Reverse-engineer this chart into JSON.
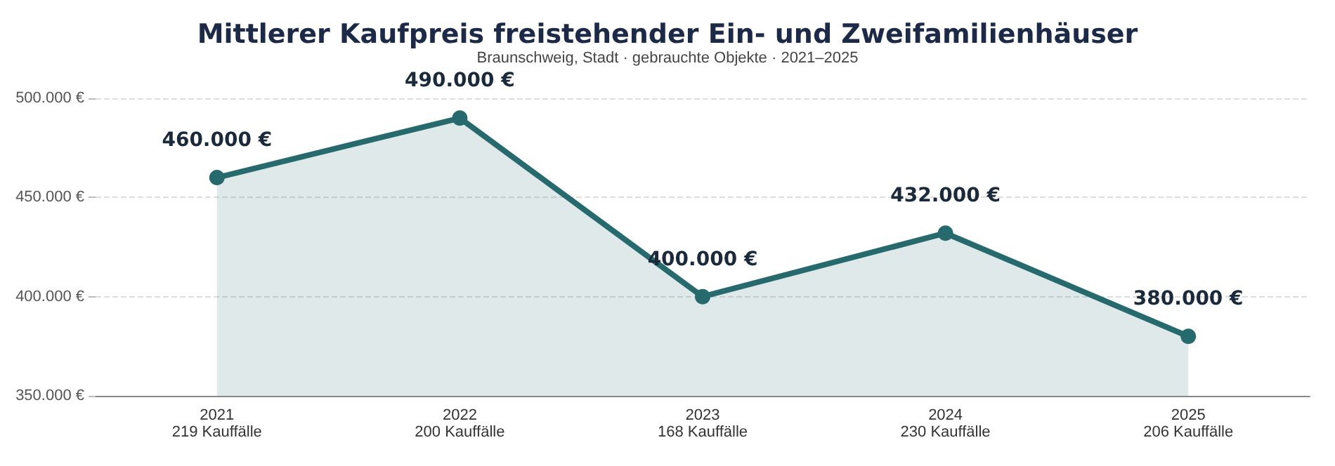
{
  "chart_data": {
    "type": "area",
    "title": "Mittlerer Kaufpreis freistehender Ein- und Zweifamilienhäuser",
    "subtitle": "Braunschweig, Stadt · gebrauchte Objekte · 2021–2025",
    "categories": [
      "2021\n219 Kauffälle",
      "2022\n200 Kauffälle",
      "2023\n168 Kauffälle",
      "2024\n230 Kauffälle",
      "2025\n206 Kauffälle"
    ],
    "series": [
      {
        "color": "#266a6e",
        "values": [
          460000,
          490000,
          400000,
          432000,
          380000
        ],
        "value_labels": [
          "460.000 €",
          "490.000 €",
          "400.000 €",
          "432.000 €",
          "380.000 €"
        ]
      }
    ],
    "ylim": [
      350000,
      500000
    ],
    "yticks": [
      {
        "value": 350000,
        "label": "350.000 €"
      },
      {
        "value": 400000,
        "label": "400.000 €"
      },
      {
        "value": 450000,
        "label": "450.000 €"
      },
      {
        "value": 500000,
        "label": "500.000 €"
      }
    ],
    "grid": "y",
    "marker": "circle",
    "line_style": "solid"
  }
}
